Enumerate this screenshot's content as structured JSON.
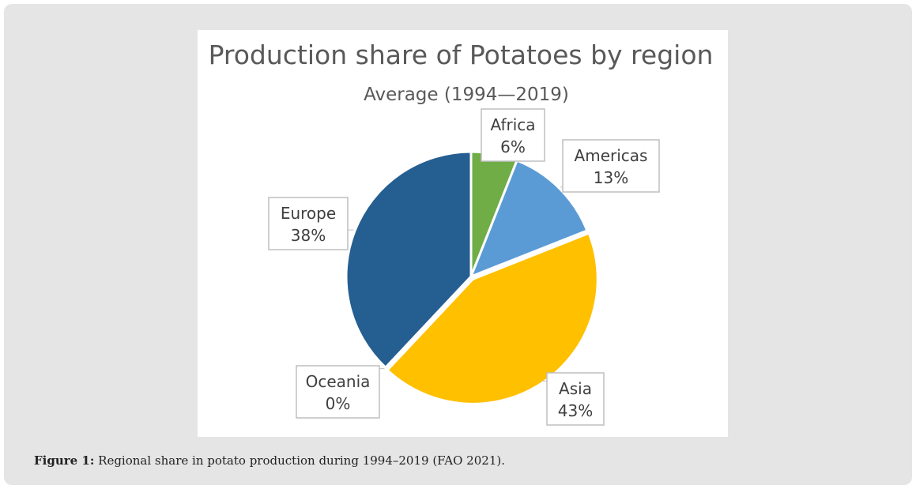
{
  "chart_data": {
    "type": "pie",
    "title": "Production share of Potatoes by region",
    "subtitle": "Average (1994—2019)",
    "slices": [
      {
        "label": "Africa",
        "value": 6,
        "value_label": "6%",
        "color": "#70ad47"
      },
      {
        "label": "Americas",
        "value": 13,
        "value_label": "13%",
        "color": "#5b9bd5"
      },
      {
        "label": "Asia",
        "value": 43,
        "value_label": "43%",
        "color": "#ffc000"
      },
      {
        "label": "Oceania",
        "value": 0,
        "value_label": "0%",
        "color": "#a5a5a5"
      },
      {
        "label": "Europe",
        "value": 38,
        "value_label": "38%",
        "color": "#255e91"
      }
    ]
  },
  "caption": {
    "label": "Figure 1:",
    "text": " Regional share in potato production during 1994–2019 (FAO 2021)."
  }
}
